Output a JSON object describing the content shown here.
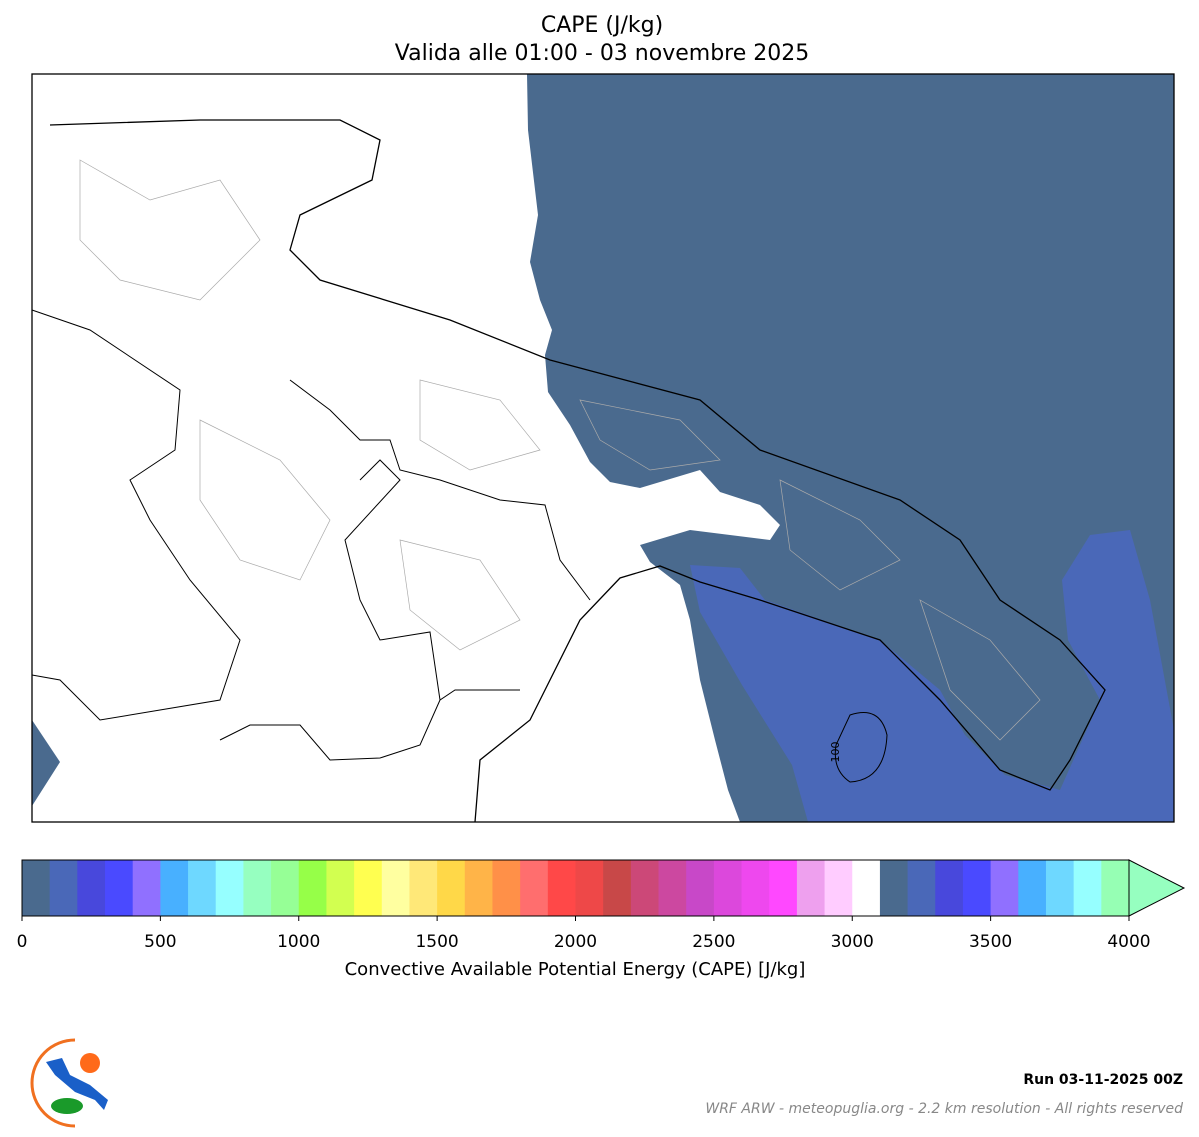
{
  "header": {
    "title": "CAPE (J/kg)",
    "subtitle": "Valida alle 01:00 - 03 novembre 2025"
  },
  "map": {
    "contour_label": "100"
  },
  "colorbar": {
    "range": [
      0,
      4000
    ],
    "ticks": [
      0,
      500,
      1000,
      1500,
      2000,
      2500,
      3000,
      3500,
      4000
    ],
    "label": "Convective Available Potential Energy (CAPE) [J/kg]",
    "colors": [
      "#4a6a8e",
      "#4a68b8",
      "#4848dc",
      "#4a4aff",
      "#9070ff",
      "#48b0ff",
      "#6ed8ff",
      "#96ffff",
      "#96ffc0",
      "#96ff96",
      "#96ff48",
      "#d2ff50",
      "#ffff50",
      "#ffffa0",
      "#ffe878",
      "#ffd848",
      "#ffb448",
      "#ff9048",
      "#ff6e6e",
      "#ff4848",
      "#ee4848",
      "#c84848",
      "#cc4878",
      "#cc48a0",
      "#c848c8",
      "#dc48dc",
      "#ee48ee",
      "#ff48ff",
      "#eea0ee",
      "#ffccff",
      "#ffffff",
      "#4a6a8e",
      "#4a68b8",
      "#4848dc",
      "#4a4aff",
      "#9070ff",
      "#48b0ff",
      "#6ed8ff",
      "#96ffff",
      "#96ffb4"
    ],
    "extend_color": "#96ffc0"
  },
  "footer": {
    "run": "Run 03-11-2025 00Z",
    "credits": "WRF ARW - meteopuglia.org - 2.2 km resolution - All rights reserved"
  }
}
